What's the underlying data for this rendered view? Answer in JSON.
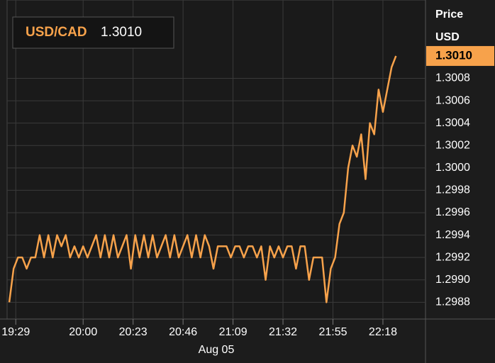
{
  "chart_data": {
    "type": "line",
    "ylabel": "Price",
    "yunit": "USD",
    "xlabel": "Aug 05",
    "last": {
      "value": 1.301,
      "label": "1.3010"
    },
    "x": [
      1166,
      1168,
      1170,
      1172,
      1174,
      1176,
      1178,
      1180,
      1182,
      1184,
      1186,
      1188,
      1190,
      1192,
      1194,
      1196,
      1198,
      1200,
      1202,
      1204,
      1206,
      1208,
      1210,
      1212,
      1214,
      1216,
      1218,
      1220,
      1222,
      1224,
      1226,
      1228,
      1230,
      1232,
      1234,
      1236,
      1238,
      1240,
      1242,
      1244,
      1246,
      1248,
      1250,
      1252,
      1254,
      1256,
      1258,
      1260,
      1262,
      1264,
      1266,
      1268,
      1270,
      1272,
      1274,
      1276,
      1278,
      1280,
      1282,
      1284,
      1286,
      1288,
      1290,
      1292,
      1294,
      1296,
      1298,
      1300,
      1302,
      1304,
      1306,
      1308,
      1310,
      1312,
      1314,
      1316,
      1318,
      1320,
      1322,
      1324,
      1326,
      1328,
      1330,
      1332,
      1334,
      1336,
      1338,
      1340,
      1342,
      1344
    ],
    "series": [
      {
        "name": "USD/CAD",
        "color": "#f7a24b",
        "values": [
          1.2988,
          1.2991,
          1.2992,
          1.2992,
          1.2991,
          1.2992,
          1.2992,
          1.2994,
          1.2992,
          1.2994,
          1.2992,
          1.2994,
          1.2993,
          1.2994,
          1.2992,
          1.2993,
          1.2992,
          1.2993,
          1.2992,
          1.2993,
          1.2994,
          1.2992,
          1.2994,
          1.2992,
          1.2994,
          1.2992,
          1.2993,
          1.2994,
          1.2991,
          1.2994,
          1.2992,
          1.2994,
          1.2992,
          1.2994,
          1.2992,
          1.2993,
          1.2994,
          1.2992,
          1.2994,
          1.2992,
          1.2993,
          1.2994,
          1.2992,
          1.2994,
          1.2992,
          1.2994,
          1.2993,
          1.2991,
          1.2993,
          1.2993,
          1.2993,
          1.2992,
          1.2993,
          1.2993,
          1.2992,
          1.2993,
          1.2993,
          1.2992,
          1.2993,
          1.299,
          1.2993,
          1.2992,
          1.2993,
          1.2992,
          1.2993,
          1.2993,
          1.2991,
          1.2993,
          1.2993,
          1.299,
          1.2992,
          1.2992,
          1.2992,
          1.2988,
          1.2991,
          1.2992,
          1.2995,
          1.2996,
          1.3,
          1.3002,
          1.3001,
          1.3003,
          1.2999,
          1.3004,
          1.3003,
          1.3007,
          1.3005,
          1.3007,
          1.3009,
          1.301
        ]
      }
    ],
    "xlim": [
      1165,
      1357.6
    ],
    "xticks": [
      {
        "value": 1169,
        "label": "19:29"
      },
      {
        "value": 1200,
        "label": "20:00"
      },
      {
        "value": 1223,
        "label": "20:23"
      },
      {
        "value": 1246,
        "label": "20:46"
      },
      {
        "value": 1269,
        "label": "21:09"
      },
      {
        "value": 1292,
        "label": "21:32"
      },
      {
        "value": 1315,
        "label": "21:55"
      },
      {
        "value": 1338,
        "label": "22:18"
      }
    ],
    "ylim": [
      1.29865,
      1.3015
    ],
    "yticks": [
      1.2988,
      {
        "value": 1.299,
        "label": "1.2990"
      },
      1.2992,
      1.2994,
      1.2996,
      1.2998,
      {
        "value": 1.3,
        "label": "1.3000"
      },
      1.3002,
      1.3004,
      1.3006,
      1.3008
    ],
    "grid": true
  }
}
